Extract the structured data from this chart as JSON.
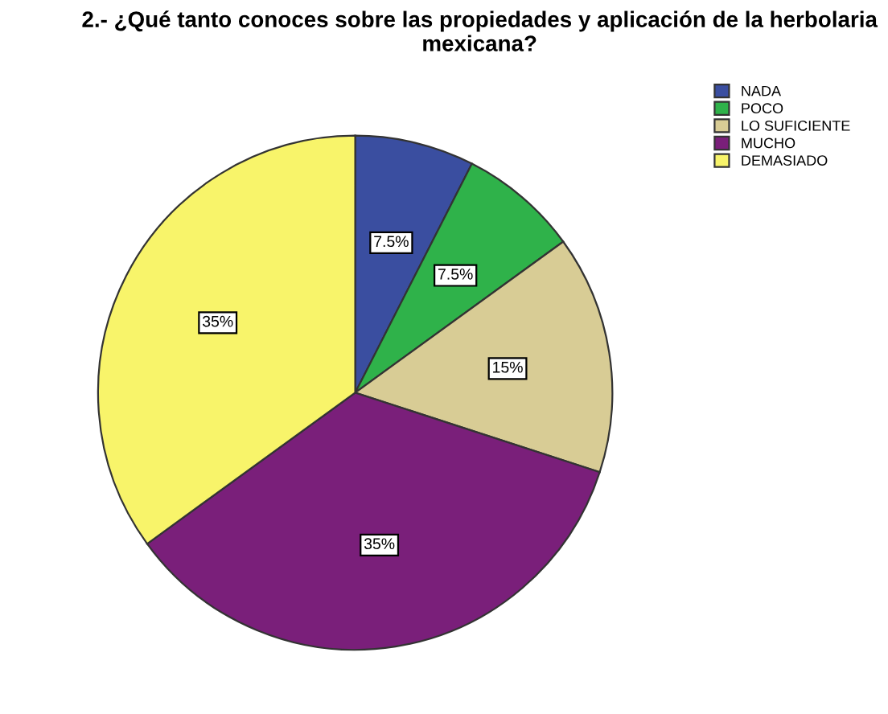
{
  "chart_data": {
    "type": "pie",
    "title": "2.- ¿Qué tanto conoces sobre las propiedades y aplicación de la herbolaria mexicana?",
    "categories": [
      "NADA",
      "POCO",
      "LO SUFICIENTE",
      "MUCHO",
      "DEMASIADO"
    ],
    "values": [
      7.5,
      7.5,
      15,
      35,
      35
    ],
    "value_labels": [
      "7.5%",
      "7.5%",
      "15%",
      "35%",
      "35%"
    ],
    "colors": [
      "#3a4ea0",
      "#2fb24a",
      "#d8cc95",
      "#7a1f7a",
      "#f8f46a"
    ],
    "legend": "top right"
  }
}
